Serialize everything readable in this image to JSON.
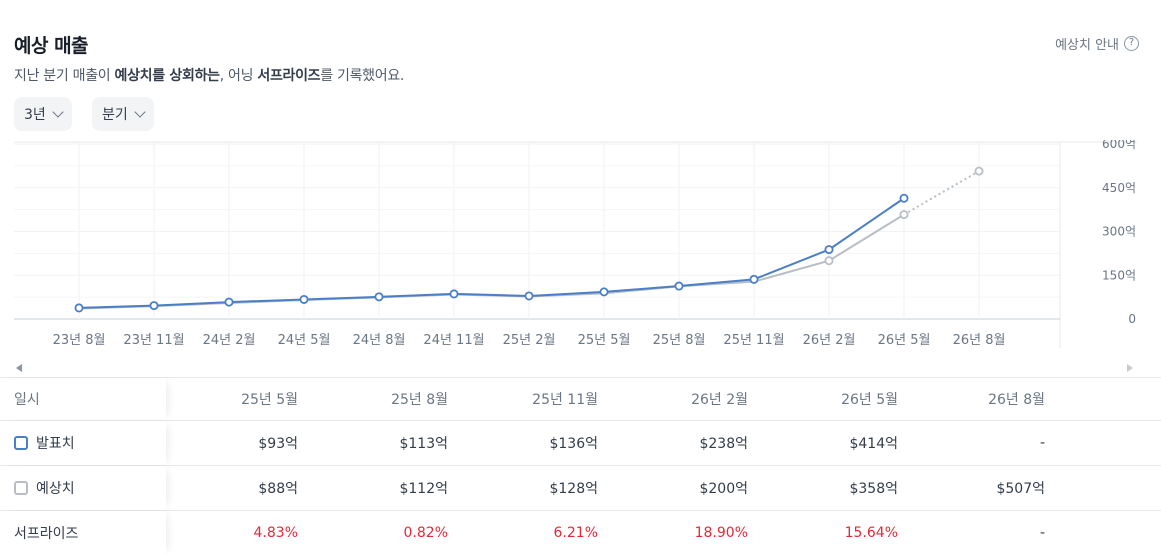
{
  "header": {
    "title": "예상 매출",
    "guide_label": "예상치 안내",
    "subtitle_pre": "지난 분기 매출이 ",
    "subtitle_bold1": "예상치를 상회하는",
    "subtitle_mid": ", 어닝 ",
    "subtitle_bold2": "서프라이즈",
    "subtitle_post": "를 기록했어요."
  },
  "filters": {
    "period": "3년",
    "interval": "분기"
  },
  "colors": {
    "actual": "#4a7fc7",
    "estimate": "#b8bec5",
    "surprise_positive": "#e42939"
  },
  "chart_data": {
    "type": "line",
    "categories": [
      "23년 8월",
      "23년 11월",
      "24년 2월",
      "24년 5월",
      "24년 8월",
      "24년 11월",
      "25년 2월",
      "25년 5월",
      "25년 8월",
      "25년 11월",
      "26년 2월",
      "26년 5월",
      "26년 8월"
    ],
    "series": [
      {
        "name": "발표치",
        "values": [
          38,
          46,
          58,
          67,
          76,
          86,
          79,
          93,
          113,
          136,
          238,
          414,
          null
        ]
      },
      {
        "name": "예상치",
        "values": [
          36,
          44,
          55,
          65,
          74,
          84,
          77,
          88,
          112,
          128,
          200,
          358,
          507
        ]
      }
    ],
    "y_ticks": [
      "600억",
      "450억",
      "300억",
      "150억",
      "0"
    ],
    "y_tick_values": [
      600,
      450,
      300,
      150,
      0
    ],
    "ylim": [
      0,
      600
    ],
    "grid": true,
    "y_axis_side": "right"
  },
  "table": {
    "header_label": "일시",
    "columns": [
      "25년 5월",
      "25년 8월",
      "25년 11월",
      "26년 2월",
      "26년 5월",
      "26년 8월"
    ],
    "rows": [
      {
        "label": "발표치",
        "values": [
          "$93억",
          "$113억",
          "$136억",
          "$238억",
          "$414억",
          "-"
        ]
      },
      {
        "label": "예상치",
        "values": [
          "$88억",
          "$112억",
          "$128억",
          "$200억",
          "$358억",
          "$507억"
        ]
      },
      {
        "label": "서프라이즈",
        "values": [
          "4.83%",
          "0.82%",
          "6.21%",
          "18.90%",
          "15.64%",
          "-"
        ]
      }
    ]
  }
}
